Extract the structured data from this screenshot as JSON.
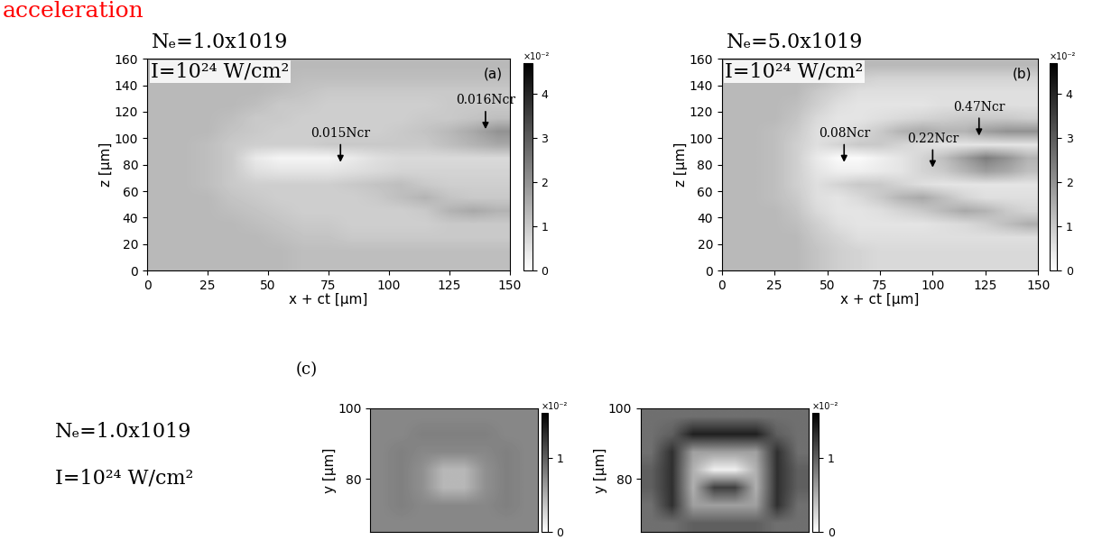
{
  "texts": {
    "header": "acceleration",
    "panel_c_label": "(c)",
    "panel_c_conditions": [
      "Nₑ=1.0x1019",
      "I=10²⁴ W/cm²"
    ]
  },
  "chart_data": [
    {
      "type": "heatmap",
      "panel_label": "(a)",
      "conditions": [
        "Nₑ=1.0x1019",
        "I=10²⁴ W/cm²"
      ],
      "xlabel": "x + ct [μm]",
      "ylabel": "z [μm]",
      "xlim": [
        0,
        150
      ],
      "ylim": [
        0,
        160
      ],
      "xticks": [
        0,
        25,
        50,
        75,
        100,
        125,
        150
      ],
      "yticks": [
        0,
        20,
        40,
        60,
        80,
        100,
        120,
        140,
        160
      ],
      "cells": [
        [
          1.3,
          1.3,
          1.3,
          1.3,
          1.3,
          1.3,
          1.2,
          1.2,
          1.2,
          1.2,
          1.2,
          1.2,
          1.2,
          1.2,
          1.2
        ],
        [
          1.3,
          1.3,
          1.3,
          1.3,
          1.3,
          1.3,
          1.2,
          1.2,
          1.2,
          1.2,
          1.2,
          1.2,
          1.2,
          1.2,
          1.2
        ],
        [
          1.3,
          1.3,
          1.3,
          1.3,
          1.3,
          1.2,
          1.1,
          1.1,
          1.0,
          1.0,
          1.0,
          1.0,
          1.0,
          1.0,
          1.0
        ],
        [
          1.3,
          1.3,
          1.3,
          1.3,
          1.2,
          1.1,
          1.0,
          1.0,
          0.9,
          0.9,
          0.9,
          0.9,
          1.0,
          1.0,
          1.0
        ],
        [
          1.3,
          1.3,
          1.3,
          1.2,
          1.1,
          1.0,
          0.9,
          0.9,
          0.9,
          0.9,
          0.9,
          1.0,
          1.4,
          1.6,
          1.4
        ],
        [
          1.3,
          1.3,
          1.3,
          1.1,
          1.0,
          0.9,
          0.9,
          0.9,
          0.9,
          1.0,
          1.2,
          1.4,
          1.1,
          1.0,
          1.0
        ],
        [
          1.3,
          1.3,
          1.2,
          1.0,
          0.9,
          0.9,
          0.9,
          0.9,
          1.0,
          1.1,
          1.2,
          1.0,
          0.9,
          0.9,
          0.9
        ],
        [
          1.3,
          1.3,
          1.2,
          1.0,
          0.6,
          0.5,
          0.5,
          0.5,
          0.6,
          0.7,
          0.8,
          0.8,
          0.8,
          0.8,
          0.8
        ],
        [
          1.3,
          1.3,
          1.2,
          1.0,
          0.4,
          0.2,
          0.2,
          0.2,
          0.4,
          0.6,
          0.7,
          0.7,
          0.7,
          0.7,
          0.7
        ],
        [
          1.3,
          1.3,
          1.2,
          1.0,
          0.9,
          0.9,
          0.9,
          1.0,
          1.0,
          1.0,
          1.0,
          1.0,
          1.2,
          1.4,
          1.6
        ],
        [
          1.3,
          1.3,
          1.3,
          1.1,
          1.0,
          0.9,
          0.9,
          0.9,
          0.9,
          0.9,
          1.0,
          1.1,
          1.3,
          1.6,
          2.0
        ],
        [
          1.3,
          1.3,
          1.3,
          1.2,
          1.0,
          1.0,
          0.9,
          0.9,
          0.9,
          0.9,
          0.9,
          1.0,
          1.0,
          1.1,
          1.2
        ],
        [
          1.3,
          1.3,
          1.3,
          1.3,
          1.2,
          1.0,
          1.0,
          0.9,
          0.9,
          0.9,
          0.9,
          0.9,
          1.0,
          1.0,
          1.0
        ],
        [
          1.3,
          1.3,
          1.3,
          1.3,
          1.3,
          1.2,
          1.1,
          1.0,
          1.0,
          1.0,
          1.0,
          1.0,
          1.0,
          1.0,
          1.0
        ],
        [
          1.3,
          1.3,
          1.3,
          1.3,
          1.3,
          1.3,
          1.2,
          1.2,
          1.2,
          1.2,
          1.2,
          1.2,
          1.2,
          1.2,
          1.2
        ],
        [
          1.3,
          1.3,
          1.3,
          1.3,
          1.3,
          1.3,
          1.3,
          1.3,
          1.3,
          1.3,
          1.3,
          1.3,
          1.3,
          1.3,
          1.3
        ]
      ],
      "colorbar": {
        "range": [
          0,
          4.7
        ],
        "ticks": [
          0,
          1,
          2,
          3,
          4
        ],
        "label": "×10⁻²"
      },
      "annotations": [
        {
          "text": "0.015Ncr",
          "x": 80,
          "y": 80
        },
        {
          "text": "0.016Ncr",
          "x": 140,
          "y": 105
        }
      ]
    },
    {
      "type": "heatmap",
      "panel_label": "(b)",
      "conditions": [
        "Nₑ=5.0x1019",
        "I=10²⁴ W/cm²"
      ],
      "xlabel": "x + ct [μm]",
      "ylabel": "z [μm]",
      "xlim": [
        0,
        150
      ],
      "ylim": [
        0,
        160
      ],
      "xticks": [
        0,
        25,
        50,
        75,
        100,
        125,
        150
      ],
      "yticks": [
        0,
        20,
        40,
        60,
        80,
        100,
        120,
        140,
        160
      ],
      "cells": [
        [
          1.3,
          1.3,
          1.3,
          1.3,
          1.1,
          0.9,
          0.8,
          0.7,
          0.7,
          0.7,
          0.7,
          0.7,
          0.7,
          0.7,
          0.7
        ],
        [
          1.3,
          1.3,
          1.3,
          1.3,
          1.1,
          0.9,
          0.8,
          0.7,
          0.7,
          0.7,
          0.7,
          0.7,
          0.7,
          0.7,
          0.7
        ],
        [
          1.3,
          1.3,
          1.3,
          1.3,
          1.0,
          0.8,
          0.6,
          0.6,
          0.6,
          0.6,
          0.6,
          0.6,
          0.6,
          0.6,
          0.6
        ],
        [
          1.3,
          1.3,
          1.3,
          1.2,
          0.9,
          0.6,
          0.5,
          0.5,
          0.5,
          0.5,
          0.6,
          0.7,
          0.9,
          1.2,
          1.5
        ],
        [
          1.3,
          1.3,
          1.3,
          1.1,
          0.7,
          0.5,
          0.5,
          0.6,
          0.8,
          1.0,
          1.3,
          1.6,
          1.4,
          1.0,
          0.8
        ],
        [
          1.3,
          1.3,
          1.2,
          1.0,
          0.6,
          0.5,
          0.7,
          1.0,
          1.4,
          1.6,
          1.2,
          0.8,
          0.6,
          0.6,
          0.6
        ],
        [
          1.3,
          1.3,
          1.2,
          0.9,
          0.6,
          0.8,
          1.0,
          1.0,
          0.8,
          0.6,
          0.5,
          0.5,
          0.5,
          0.5,
          0.5
        ],
        [
          1.3,
          1.3,
          1.2,
          0.9,
          0.5,
          0.3,
          0.3,
          0.4,
          0.5,
          0.8,
          1.0,
          1.4,
          1.8,
          1.6,
          1.2
        ],
        [
          1.3,
          1.3,
          1.2,
          0.9,
          0.4,
          0.1,
          0.1,
          0.3,
          0.5,
          0.8,
          1.2,
          1.8,
          2.4,
          2.0,
          1.4
        ],
        [
          1.3,
          1.3,
          1.2,
          0.9,
          0.6,
          0.8,
          1.0,
          1.0,
          0.8,
          0.6,
          0.5,
          0.5,
          0.5,
          0.5,
          0.5
        ],
        [
          1.3,
          1.3,
          1.2,
          1.0,
          0.6,
          0.5,
          0.7,
          1.0,
          1.4,
          1.6,
          1.4,
          1.4,
          1.8,
          2.0,
          2.0
        ],
        [
          1.3,
          1.3,
          1.3,
          1.1,
          0.7,
          0.5,
          0.5,
          0.6,
          0.7,
          0.8,
          0.9,
          1.0,
          1.0,
          1.0,
          0.9
        ],
        [
          1.3,
          1.3,
          1.3,
          1.2,
          0.9,
          0.6,
          0.5,
          0.5,
          0.5,
          0.5,
          0.6,
          0.6,
          0.6,
          0.6,
          0.6
        ],
        [
          1.3,
          1.3,
          1.3,
          1.3,
          1.0,
          0.8,
          0.6,
          0.6,
          0.6,
          0.6,
          0.6,
          0.6,
          0.6,
          0.6,
          0.6
        ],
        [
          1.3,
          1.3,
          1.3,
          1.3,
          1.3,
          1.0,
          0.9,
          0.8,
          0.8,
          0.8,
          0.8,
          0.8,
          0.8,
          0.8,
          0.8
        ],
        [
          1.3,
          1.3,
          1.3,
          1.3,
          1.3,
          1.3,
          1.3,
          1.3,
          1.3,
          1.3,
          1.3,
          1.3,
          1.3,
          1.3,
          1.3
        ]
      ],
      "colorbar": {
        "range": [
          0,
          4.7
        ],
        "ticks": [
          0,
          1,
          2,
          3,
          4
        ],
        "label": "×10⁻²"
      },
      "annotations": [
        {
          "text": "0.08Ncr",
          "x": 58,
          "y": 80
        },
        {
          "text": "0.22Ncr",
          "x": 100,
          "y": 76
        },
        {
          "text": "0.47Ncr",
          "x": 122,
          "y": 100
        }
      ]
    },
    {
      "type": "heatmap",
      "ylabel": "y [μm]",
      "tick_labels": "y",
      "xlim": [
        56,
        104
      ],
      "ylim": [
        65,
        100
      ],
      "xticks": [],
      "yticks": [
        80,
        100
      ],
      "cells": [
        [
          0.75,
          0.75,
          0.75,
          0.75,
          0.75,
          0.75,
          0.75,
          0.75
        ],
        [
          0.75,
          0.8,
          0.75,
          0.75,
          0.75,
          0.75,
          0.8,
          0.75
        ],
        [
          0.75,
          0.8,
          0.7,
          0.45,
          0.45,
          0.7,
          0.8,
          0.75
        ],
        [
          0.75,
          0.8,
          0.7,
          0.45,
          0.45,
          0.7,
          0.8,
          0.75
        ],
        [
          0.75,
          0.8,
          0.75,
          0.75,
          0.75,
          0.75,
          0.8,
          0.75
        ],
        [
          0.75,
          0.75,
          0.8,
          0.8,
          0.8,
          0.8,
          0.75,
          0.75
        ],
        [
          0.75,
          0.75,
          0.75,
          0.75,
          0.75,
          0.75,
          0.75,
          0.75
        ]
      ],
      "colorbar": {
        "range": [
          0,
          1.6
        ],
        "ticks": [
          0,
          1
        ],
        "label": "×10⁻²"
      }
    },
    {
      "type": "heatmap",
      "ylabel": "y [μm]",
      "tick_labels": "y",
      "xlim": [
        56,
        104
      ],
      "ylim": [
        65,
        100
      ],
      "xticks": [],
      "yticks": [
        80,
        100
      ],
      "cells": [
        [
          0.9,
          0.9,
          1.0,
          1.0,
          1.0,
          1.0,
          0.9,
          0.9
        ],
        [
          0.9,
          1.3,
          0.6,
          0.6,
          0.6,
          0.6,
          1.3,
          0.9
        ],
        [
          1.0,
          1.3,
          0.5,
          1.2,
          1.2,
          0.5,
          1.3,
          1.0
        ],
        [
          1.0,
          1.3,
          0.5,
          0.1,
          0.1,
          0.5,
          1.3,
          1.0
        ],
        [
          0.9,
          1.3,
          0.6,
          0.6,
          0.6,
          0.6,
          1.3,
          0.9
        ],
        [
          0.9,
          1.0,
          1.4,
          1.4,
          1.4,
          1.4,
          1.0,
          0.9
        ],
        [
          0.9,
          0.9,
          0.9,
          0.9,
          0.9,
          0.9,
          0.9,
          0.9
        ]
      ],
      "colorbar": {
        "range": [
          0,
          1.6
        ],
        "ticks": [
          0,
          1
        ],
        "label": "×10⁻²"
      }
    }
  ]
}
